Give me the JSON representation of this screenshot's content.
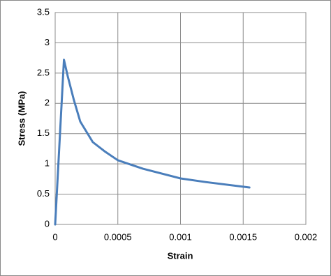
{
  "chart_data": {
    "type": "line",
    "x_label": "Strain",
    "y_label": "Stress (MPa)",
    "series": [
      {
        "name": "Stress",
        "color": "#4a7ebb",
        "x": [
          0,
          7e-05,
          0.0001,
          0.00015,
          0.0002,
          0.0003,
          0.0004,
          0.0005,
          0.0007,
          0.001,
          0.0012,
          0.00155
        ],
        "values": [
          0,
          2.72,
          2.45,
          2.05,
          1.7,
          1.36,
          1.2,
          1.06,
          0.92,
          0.76,
          0.7,
          0.61
        ]
      }
    ],
    "xlim": [
      0,
      0.002
    ],
    "xticks": [
      0,
      0.0005,
      0.001,
      0.0015,
      0.002
    ],
    "ylim": [
      0,
      3.5
    ],
    "yticks": [
      0,
      0.5,
      1,
      1.5,
      2,
      2.5,
      3,
      3.5
    ],
    "grid": true
  }
}
